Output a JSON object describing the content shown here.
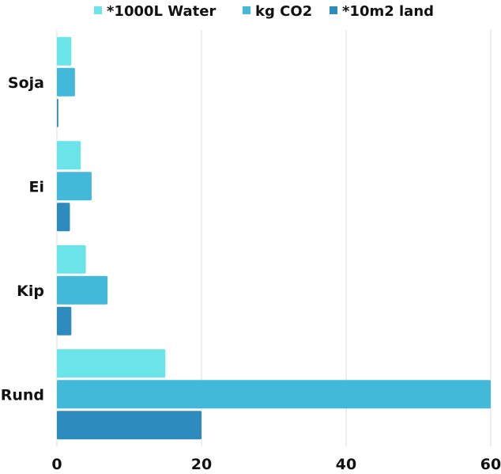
{
  "chart_data": {
    "type": "bar",
    "orientation": "horizontal",
    "categories": [
      "Soja",
      "Ei",
      "Kip",
      "Rund"
    ],
    "series": [
      {
        "name": "*1000L Water",
        "values": [
          2,
          3.3,
          4,
          15
        ],
        "color": "#6ae3e9"
      },
      {
        "name": "kg CO2",
        "values": [
          2.5,
          4.8,
          7,
          60
        ],
        "color": "#43b9d9"
      },
      {
        "name": "*10m2 land",
        "values": [
          0.2,
          1.8,
          2,
          20
        ],
        "color": "#2e8bbd"
      }
    ],
    "xlim": [
      0,
      60
    ],
    "x_ticks": [
      0,
      20,
      40,
      60
    ],
    "grid": true,
    "legend_position": "top"
  }
}
